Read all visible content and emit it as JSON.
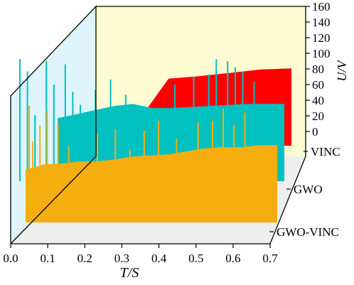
{
  "chart_data": {
    "type": "area",
    "title": "",
    "xlabel": "T/S",
    "zlabel": "U/V",
    "x_ticks": [
      "0.0",
      "0.1",
      "0.2",
      "0.3",
      "0.4",
      "0.5",
      "0.6",
      "0.7"
    ],
    "z_ticks": [
      "0",
      "20",
      "40",
      "60",
      "80",
      "100",
      "120",
      "140",
      "160"
    ],
    "xlim": [
      0,
      0.7
    ],
    "zlim": [
      0,
      160
    ],
    "grid": false,
    "series": [
      {
        "name": "VINC",
        "color": "#ff0000",
        "points": [
          [
            0.26,
            0
          ],
          [
            0.3,
            24
          ],
          [
            0.38,
            66
          ],
          [
            0.45,
            68
          ],
          [
            0.55,
            72
          ],
          [
            0.62,
            75
          ],
          [
            0.7,
            76
          ]
        ],
        "spikes": []
      },
      {
        "name": "GWO",
        "color": "#00c0c0",
        "points": [
          [
            0.1,
            62
          ],
          [
            0.15,
            66
          ],
          [
            0.2,
            70
          ],
          [
            0.25,
            74
          ],
          [
            0.3,
            76
          ],
          [
            0.35,
            72
          ],
          [
            0.4,
            72
          ],
          [
            0.45,
            73
          ],
          [
            0.5,
            74
          ],
          [
            0.55,
            75
          ],
          [
            0.6,
            76
          ],
          [
            0.65,
            76
          ],
          [
            0.7,
            76
          ]
        ],
        "spikes": [
          [
            0.0,
            120
          ],
          [
            0.02,
            108
          ],
          [
            0.04,
            65
          ],
          [
            0.07,
            118
          ],
          [
            0.09,
            95
          ],
          [
            0.12,
            115
          ],
          [
            0.14,
            88
          ],
          [
            0.16,
            75
          ],
          [
            0.2,
            90
          ],
          [
            0.24,
            100
          ],
          [
            0.28,
            85
          ],
          [
            0.31,
            60
          ],
          [
            0.36,
            70
          ],
          [
            0.41,
            95
          ],
          [
            0.46,
            103
          ],
          [
            0.5,
            105
          ],
          [
            0.52,
            120
          ],
          [
            0.55,
            118
          ],
          [
            0.57,
            112
          ],
          [
            0.59,
            108
          ],
          [
            0.62,
            98
          ]
        ]
      },
      {
        "name": "GWO-VINC",
        "color": "#f5ad0f",
        "points": [
          [
            0.0,
            52
          ],
          [
            0.05,
            57
          ],
          [
            0.1,
            58
          ],
          [
            0.15,
            60
          ],
          [
            0.2,
            60
          ],
          [
            0.25,
            62
          ],
          [
            0.3,
            65
          ],
          [
            0.35,
            66
          ],
          [
            0.4,
            67
          ],
          [
            0.45,
            70
          ],
          [
            0.5,
            73
          ],
          [
            0.55,
            74
          ],
          [
            0.6,
            74
          ],
          [
            0.65,
            76
          ],
          [
            0.7,
            76
          ]
        ],
        "spikes": [
          [
            0.01,
            115
          ],
          [
            0.02,
            80
          ],
          [
            0.04,
            95
          ],
          [
            0.06,
            110
          ],
          [
            0.09,
            98
          ],
          [
            0.12,
            75
          ],
          [
            0.2,
            88
          ],
          [
            0.25,
            92
          ],
          [
            0.29,
            72
          ],
          [
            0.33,
            90
          ],
          [
            0.37,
            100
          ],
          [
            0.42,
            82
          ],
          [
            0.48,
            98
          ],
          [
            0.52,
            100
          ],
          [
            0.55,
            112
          ],
          [
            0.58,
            96
          ],
          [
            0.61,
            108
          ]
        ]
      }
    ]
  }
}
